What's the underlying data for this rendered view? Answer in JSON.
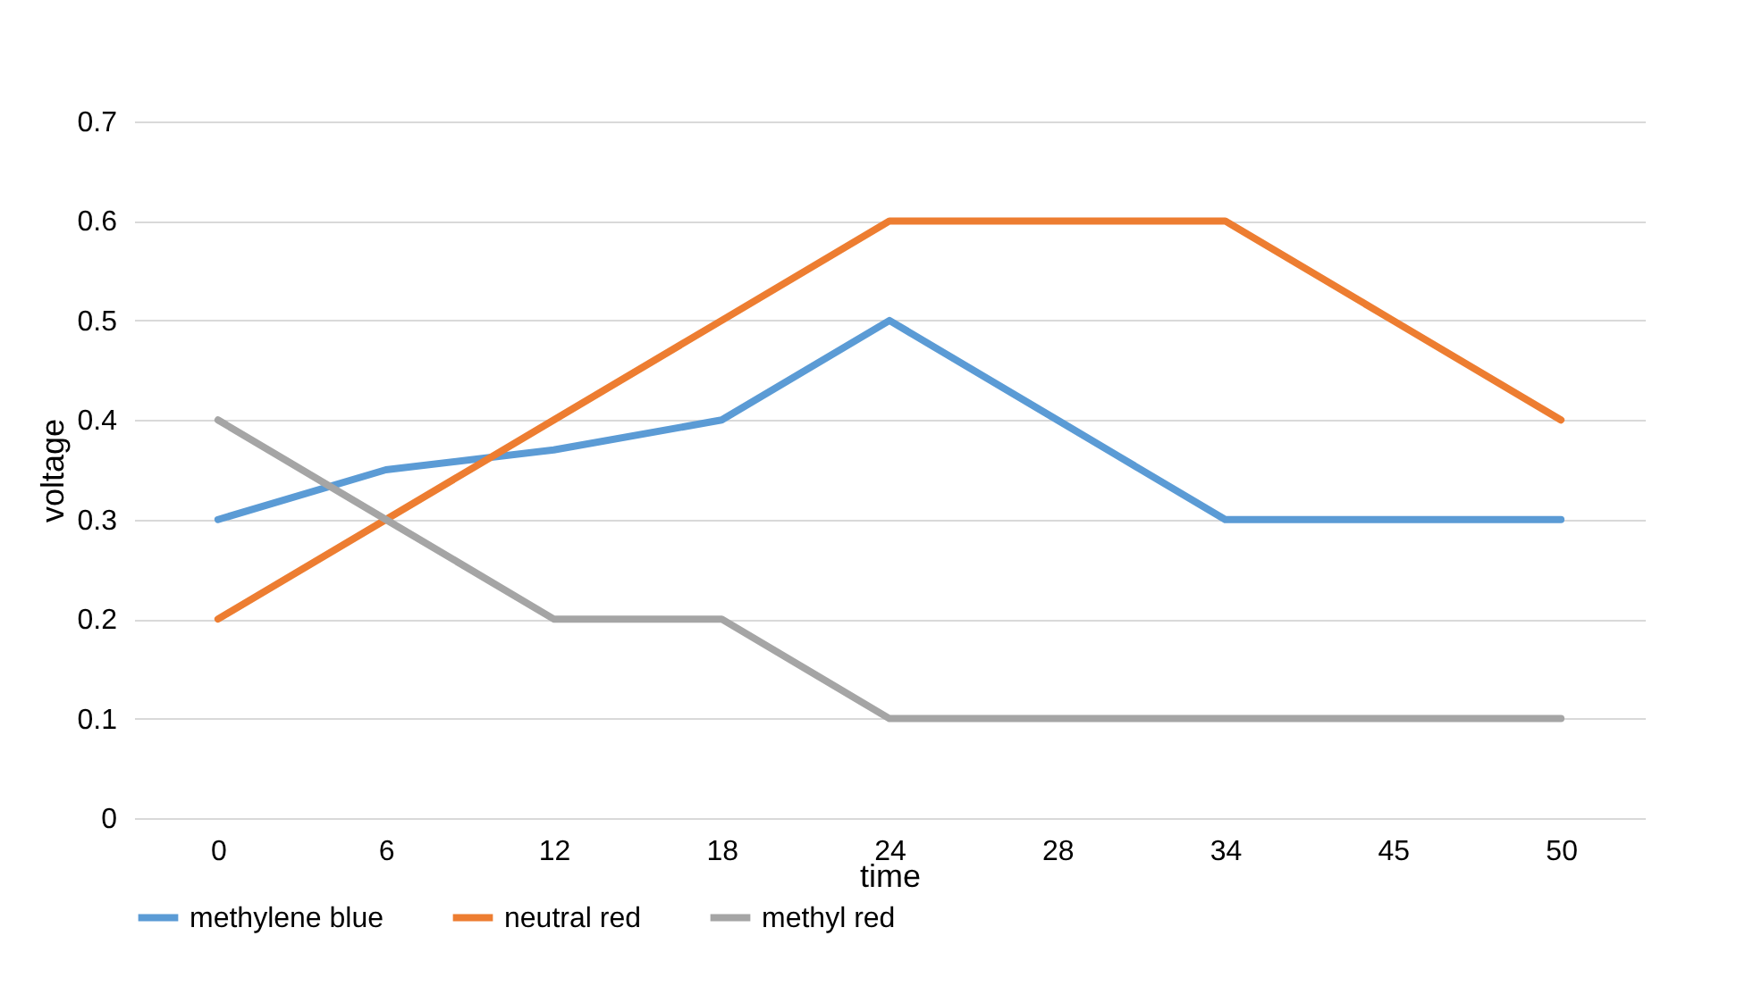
{
  "chart_data": {
    "type": "line",
    "xlabel": "time",
    "ylabel": "voltage",
    "categories": [
      "0",
      "6",
      "12",
      "18",
      "24",
      "28",
      "34",
      "45",
      "50"
    ],
    "series": [
      {
        "name": "methylene blue",
        "color": "#5b9bd5",
        "values": [
          0.3,
          0.35,
          0.37,
          0.4,
          0.5,
          0.4,
          0.3,
          0.3,
          0.3
        ]
      },
      {
        "name": "neutral red",
        "color": "#ed7d31",
        "values": [
          0.2,
          0.3,
          0.4,
          0.5,
          0.6,
          0.6,
          0.6,
          0.5,
          0.4
        ]
      },
      {
        "name": "methyl red",
        "color": "#a5a5a5",
        "values": [
          0.4,
          0.3,
          0.2,
          0.2,
          0.1,
          0.1,
          0.1,
          0.1,
          0.1
        ]
      }
    ],
    "ylim": [
      0,
      0.7
    ],
    "yticks": [
      0,
      0.1,
      0.2,
      0.3,
      0.4,
      0.5,
      0.6,
      0.7
    ],
    "grid": "y",
    "legend": "bottom"
  }
}
